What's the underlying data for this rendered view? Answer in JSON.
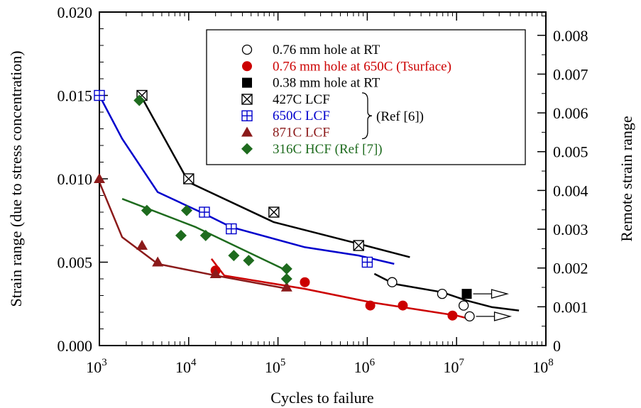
{
  "chart_data": {
    "type": "scatter",
    "xlabel": "Cycles to failure",
    "ylabel": "Strain range (due to stress concentration)",
    "y2label": "Remote strain range",
    "x_scale": "log",
    "xlim": [
      1000,
      100000000
    ],
    "ylim": [
      0.0,
      0.02
    ],
    "y2lim": [
      0.0,
      0.0086
    ],
    "x_ticks": [
      {
        "value": 1000,
        "base": "10",
        "exp": "3"
      },
      {
        "value": 10000,
        "base": "10",
        "exp": "4"
      },
      {
        "value": 100000,
        "base": "10",
        "exp": "5"
      },
      {
        "value": 1000000,
        "base": "10",
        "exp": "6"
      },
      {
        "value": 10000000,
        "base": "10",
        "exp": "7"
      },
      {
        "value": 100000000,
        "base": "10",
        "exp": "8"
      }
    ],
    "y_ticks": [
      {
        "value": 0.0,
        "label": "0.000"
      },
      {
        "value": 0.005,
        "label": "0.005"
      },
      {
        "value": 0.01,
        "label": "0.010"
      },
      {
        "value": 0.015,
        "label": "0.015"
      },
      {
        "value": 0.02,
        "label": "0.020"
      }
    ],
    "y2_ticks": [
      {
        "value": 0,
        "label": "0"
      },
      {
        "value": 0.001,
        "label": "0.001"
      },
      {
        "value": 0.002,
        "label": "0.002"
      },
      {
        "value": 0.003,
        "label": "0.003"
      },
      {
        "value": 0.004,
        "label": "0.004"
      },
      {
        "value": 0.005,
        "label": "0.005"
      },
      {
        "value": 0.006,
        "label": "0.006"
      },
      {
        "value": 0.007,
        "label": "0.007"
      },
      {
        "value": 0.008,
        "label": "0.008"
      }
    ],
    "grid": false,
    "legend_position": "top-right",
    "ref_bracket_label": "(Ref [6])",
    "series": [
      {
        "name": "0.76 mm hole at RT",
        "marker": "circle-open",
        "color": "#000000",
        "points": [
          [
            1900000,
            0.0038
          ],
          [
            6900000,
            0.0031
          ],
          [
            12000000,
            0.0024
          ],
          [
            14000000,
            0.00175
          ]
        ],
        "runouts": [
          [
            14000000,
            0.00175
          ]
        ]
      },
      {
        "name": "0.76 mm hole at 650C (Tsurface)",
        "marker": "circle-filled",
        "color": "#cc0000",
        "points": [
          [
            20000,
            0.0045
          ],
          [
            200000,
            0.0038
          ],
          [
            1080000,
            0.0024
          ],
          [
            2500000,
            0.0024
          ],
          [
            9000000,
            0.0018
          ]
        ]
      },
      {
        "name": "0.38 mm hole at RT",
        "marker": "square-filled",
        "color": "#000000",
        "points": [
          [
            13000000,
            0.0031
          ]
        ],
        "runouts": [
          [
            13000000,
            0.0031
          ]
        ]
      },
      {
        "name": "427C LCF",
        "marker": "square-x",
        "color": "#000000",
        "points": [
          [
            3000,
            0.015
          ],
          [
            10000,
            0.01
          ],
          [
            90000,
            0.008
          ],
          [
            800000,
            0.006
          ]
        ]
      },
      {
        "name": "650C LCF",
        "marker": "square-plus",
        "color": "#0000cc",
        "points": [
          [
            1000,
            0.015
          ],
          [
            15000,
            0.008
          ],
          [
            30000,
            0.007
          ],
          [
            1000000,
            0.005
          ]
        ]
      },
      {
        "name": "871C LCF",
        "marker": "triangle",
        "color": "#8b1a1a",
        "points": [
          [
            1000,
            0.01
          ],
          [
            3000,
            0.006
          ],
          [
            4500,
            0.005
          ],
          [
            20000,
            0.0043
          ],
          [
            125000,
            0.0035
          ]
        ]
      },
      {
        "name": "316C HCF (Ref [7])",
        "marker": "diamond",
        "color": "#1e6b1e",
        "points": [
          [
            2800,
            0.0147
          ],
          [
            3400,
            0.0081
          ],
          [
            8200,
            0.0066
          ],
          [
            9500,
            0.0081
          ],
          [
            15500,
            0.0066
          ],
          [
            32000,
            0.0054
          ],
          [
            47000,
            0.0051
          ],
          [
            125000,
            0.0046
          ],
          [
            125000,
            0.004
          ]
        ]
      }
    ],
    "trend_lines": [
      {
        "color": "#000000",
        "points": [
          [
            2900,
            0.015
          ],
          [
            10000,
            0.0098
          ],
          [
            90000,
            0.0074
          ],
          [
            800000,
            0.0061
          ],
          [
            3000000,
            0.0053
          ]
        ]
      },
      {
        "color": "#0000cc",
        "points": [
          [
            1000,
            0.015
          ],
          [
            1800,
            0.0124
          ],
          [
            4500,
            0.0092
          ],
          [
            15000,
            0.0079
          ],
          [
            30000,
            0.0071
          ],
          [
            200000,
            0.0059
          ],
          [
            800000,
            0.0054
          ],
          [
            2000000,
            0.0049
          ]
        ]
      },
      {
        "color": "#8b1a1a",
        "points": [
          [
            1000,
            0.0098
          ],
          [
            1800,
            0.0065
          ],
          [
            4500,
            0.0049
          ],
          [
            20000,
            0.0042
          ],
          [
            130000,
            0.0034
          ]
        ]
      },
      {
        "color": "#1e6b1e",
        "points": [
          [
            1800,
            0.0088
          ],
          [
            12000,
            0.0071
          ],
          [
            125000,
            0.0045
          ]
        ]
      },
      {
        "color": "#cc0000",
        "points": [
          [
            18000,
            0.0052
          ],
          [
            25000,
            0.0042
          ],
          [
            200000,
            0.0034
          ],
          [
            1080000,
            0.0026
          ],
          [
            10000000,
            0.0018
          ],
          [
            14000000,
            0.0016
          ]
        ]
      },
      {
        "color": "#000000",
        "points": [
          [
            1200000,
            0.0043
          ],
          [
            2000000,
            0.0037
          ],
          [
            6900000,
            0.0032
          ],
          [
            13000000,
            0.0027
          ],
          [
            25000000,
            0.0023
          ],
          [
            50000000,
            0.0021
          ]
        ]
      }
    ]
  }
}
